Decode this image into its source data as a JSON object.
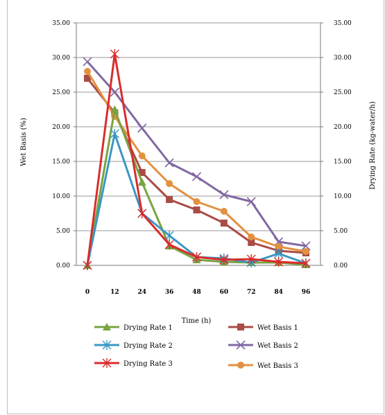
{
  "chart_data": {
    "type": "line",
    "x": [
      0,
      12,
      24,
      36,
      48,
      60,
      72,
      84,
      96
    ],
    "x_ticks": [
      "0",
      "12",
      "24",
      "36",
      "48",
      "60",
      "72",
      "84",
      "96"
    ],
    "xlabel": "Time (h)",
    "ylabel_left": "Wet Basis (%)",
    "ylabel_right": "Drying Rate (kg-water/h)",
    "ylim_left": [
      0,
      35
    ],
    "ylim_right": [
      0,
      35
    ],
    "yticks_left": [
      "0.00",
      "5.00",
      "10.00",
      "15.00",
      "20.00",
      "25.00",
      "30.00",
      "35.00"
    ],
    "yticks_right": [
      "0.00",
      "5.00",
      "10.00",
      "15.00",
      "20.00",
      "25.00",
      "30.00",
      "35.00"
    ],
    "grid": "horizontal",
    "legend_position": "bottom",
    "series": [
      {
        "name": "Drying Rate 1",
        "axis": "right",
        "marker": "triangle",
        "color": "#77a442",
        "values": [
          0,
          22.5,
          12.0,
          2.8,
          0.8,
          0.5,
          0.4,
          0.4,
          0.1
        ]
      },
      {
        "name": "Drying Rate 2",
        "axis": "right",
        "marker": "star",
        "color": "#3a97c4",
        "values": [
          0,
          19.0,
          7.5,
          4.3,
          1.2,
          1.0,
          0.4,
          1.7,
          0.3
        ]
      },
      {
        "name": "Drying Rate 3",
        "axis": "right",
        "marker": "star",
        "color": "#d92c2c",
        "values": [
          0,
          30.5,
          7.5,
          3.0,
          1.2,
          0.8,
          0.9,
          0.5,
          0.3
        ]
      },
      {
        "name": "Wet Basis 1",
        "axis": "left",
        "marker": "square",
        "color": "#a94c46",
        "values": [
          27.0,
          22.0,
          13.4,
          9.5,
          8.0,
          6.1,
          3.3,
          2.1,
          1.8
        ]
      },
      {
        "name": "Wet Basis 2",
        "axis": "left",
        "marker": "x",
        "color": "#8068a2",
        "values": [
          29.4,
          25.0,
          19.8,
          14.8,
          12.8,
          10.2,
          9.2,
          3.4,
          2.8
        ]
      },
      {
        "name": "Wet Basis 3",
        "axis": "left",
        "marker": "circle",
        "color": "#e3913f",
        "values": [
          28.0,
          21.5,
          15.8,
          11.8,
          9.2,
          7.8,
          4.1,
          2.7,
          2.0
        ]
      }
    ]
  }
}
